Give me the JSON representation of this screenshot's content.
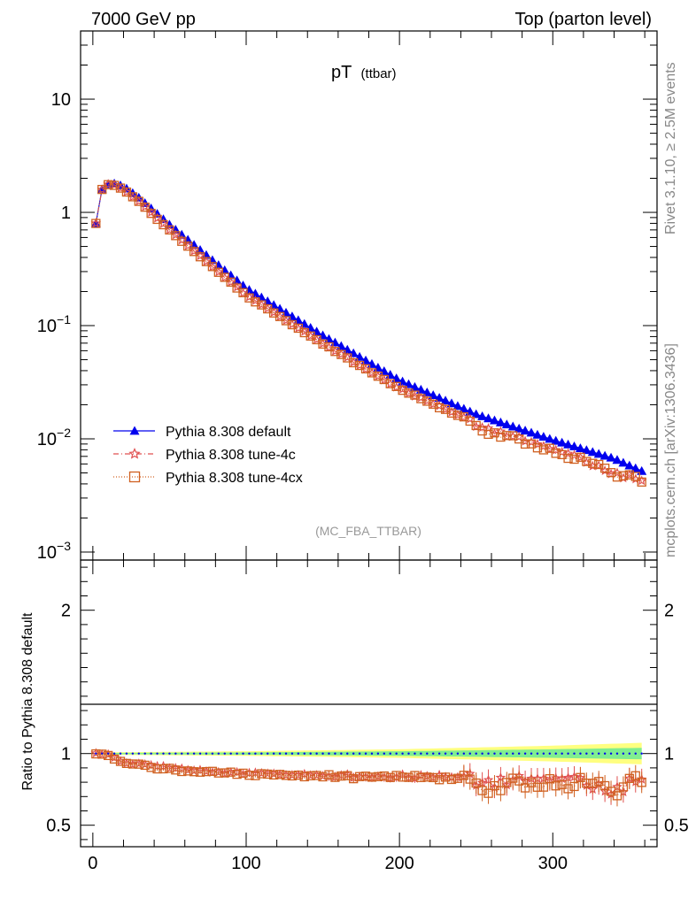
{
  "header": {
    "left": "7000 GeV pp",
    "right": "Top (parton level)"
  },
  "side_labels": {
    "top": "Rivet 3.1.10, ≥ 2.5M events",
    "bottom": "mcplots.cern.ch [arXiv:1306.3436]"
  },
  "chart_data": [
    {
      "type": "line",
      "panel": "main",
      "title": "pT",
      "title_sub": "(ttbar)",
      "watermark": "(MC_FBA_TTBAR)",
      "xlim": [
        -8,
        368
      ],
      "ylim": [
        0.00085,
        40
      ],
      "log_y": true,
      "x_ticks": [
        0,
        100,
        200,
        300
      ],
      "y_tick_labels": [
        {
          "value": 10,
          "base": "10",
          "exp": ""
        },
        {
          "value": 1,
          "base": "1",
          "exp": ""
        },
        {
          "value": 0.1,
          "base": "10",
          "exp": "−1"
        },
        {
          "value": 0.01,
          "base": "10",
          "exp": "−2"
        },
        {
          "value": 0.001,
          "base": "10",
          "exp": "−3"
        }
      ],
      "legend_position": "bottom-left",
      "bin_width": 4,
      "x_start": 2,
      "x_end": 358,
      "series": [
        {
          "name": "Pythia 8.308 default",
          "color": "#0000ee",
          "marker": "triangle",
          "description_points": [
            [
              2,
              0.8
            ],
            [
              6,
              1.6
            ],
            [
              10,
              1.78
            ],
            [
              14,
              1.8
            ],
            [
              20,
              1.7
            ],
            [
              30,
              1.35
            ],
            [
              50,
              0.78
            ],
            [
              80,
              0.36
            ],
            [
              100,
              0.215
            ],
            [
              150,
              0.082
            ],
            [
              200,
              0.033
            ],
            [
              250,
              0.0165
            ],
            [
              300,
              0.0098
            ],
            [
              340,
              0.0067
            ],
            [
              358,
              0.0052
            ]
          ]
        },
        {
          "name": "Pythia 8.308 tune-4c",
          "color": "#e05050",
          "marker": "star",
          "line": "dash-dot",
          "ratio_points": [
            [
              2,
              1.0
            ],
            [
              6,
              1.0
            ],
            [
              10,
              1.0
            ],
            [
              20,
              0.94
            ],
            [
              40,
              0.91
            ],
            [
              60,
              0.89
            ],
            [
              80,
              0.87
            ],
            [
              100,
              0.86
            ],
            [
              150,
              0.85
            ],
            [
              200,
              0.84
            ],
            [
              240,
              0.84
            ],
            [
              260,
              0.79
            ],
            [
              280,
              0.82
            ],
            [
              300,
              0.81
            ],
            [
              320,
              0.82
            ],
            [
              340,
              0.72
            ],
            [
              350,
              0.8
            ],
            [
              358,
              0.85
            ]
          ]
        },
        {
          "name": "Pythia 8.308 tune-4cx",
          "color": "#d06020",
          "marker": "square-open",
          "line": "dotted",
          "ratio_points": [
            [
              2,
              0.99
            ],
            [
              6,
              1.0
            ],
            [
              10,
              0.98
            ],
            [
              20,
              0.94
            ],
            [
              40,
              0.9
            ],
            [
              60,
              0.88
            ],
            [
              80,
              0.87
            ],
            [
              100,
              0.855
            ],
            [
              150,
              0.84
            ],
            [
              200,
              0.835
            ],
            [
              240,
              0.83
            ],
            [
              258,
              0.73
            ],
            [
              270,
              0.8
            ],
            [
              290,
              0.79
            ],
            [
              310,
              0.79
            ],
            [
              330,
              0.82
            ],
            [
              342,
              0.72
            ],
            [
              352,
              0.88
            ],
            [
              358,
              0.78
            ]
          ]
        }
      ]
    },
    {
      "type": "line",
      "panel": "ratio",
      "ylabel": "Ratio to Pythia 8.308 default",
      "xlim": [
        -8,
        368
      ],
      "ylim": [
        0.35,
        2.35
      ],
      "y_ticks": [
        0.5,
        1,
        2
      ],
      "x_ticks": [
        0,
        100,
        200,
        300
      ],
      "band_green_halfwidth": [
        [
          0,
          0.004
        ],
        [
          100,
          0.008
        ],
        [
          200,
          0.016
        ],
        [
          300,
          0.03
        ],
        [
          358,
          0.04
        ]
      ],
      "band_yellow_halfwidth": [
        [
          0,
          0.008
        ],
        [
          100,
          0.016
        ],
        [
          200,
          0.03
        ],
        [
          300,
          0.055
        ],
        [
          358,
          0.075
        ]
      ]
    }
  ]
}
